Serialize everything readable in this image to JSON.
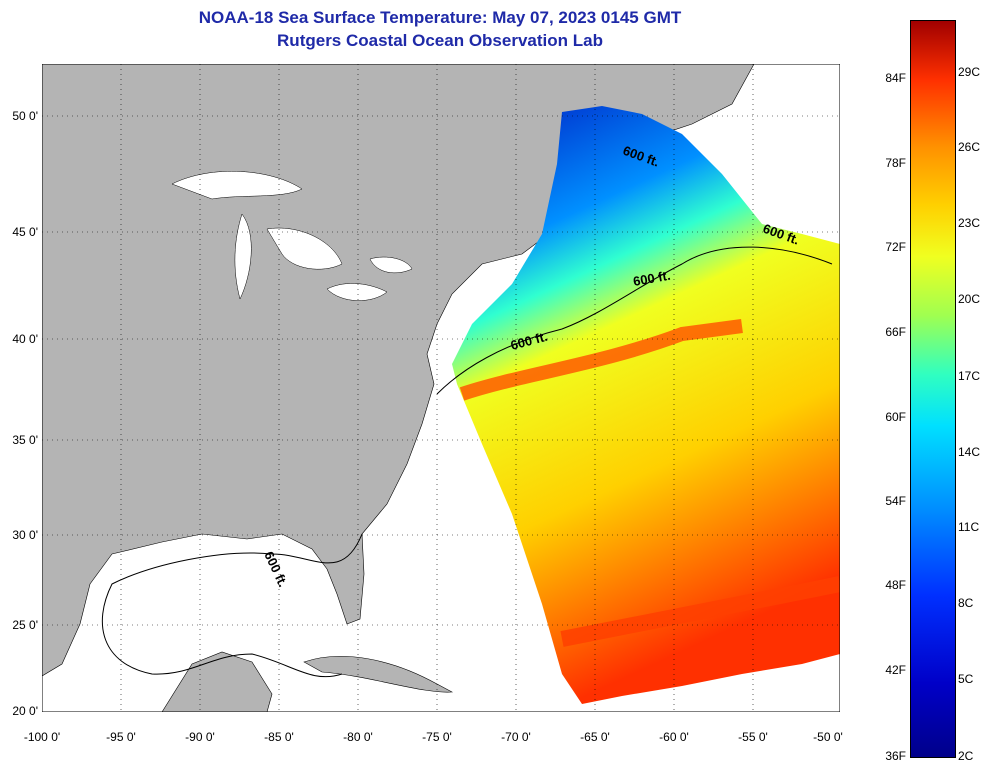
{
  "title": {
    "line1": "NOAA-18 Sea Surface Temperature:  May 07, 2023 0145 GMT",
    "line2": "Rutgers Coastal Ocean Observation Lab"
  },
  "axes": {
    "x_ticks": [
      "-100 0'",
      "-95 0'",
      "-90 0'",
      "-85 0'",
      "-80 0'",
      "-75 0'",
      "-70 0'",
      "-65 0'",
      "-60 0'",
      "-55 0'",
      "-50 0'"
    ],
    "y_ticks": [
      "50 0'",
      "45 0'",
      "40 0'",
      "35 0'",
      "30 0'",
      "25 0'",
      "20 0'"
    ]
  },
  "contour_labels": [
    "600 ft.",
    "600 ft.",
    "600 ft.",
    "600 ft.",
    "600 ft."
  ],
  "colorbar": {
    "fahrenheit": [
      "84F",
      "78F",
      "72F",
      "66F",
      "60F",
      "54F",
      "48F",
      "42F",
      "36F"
    ],
    "celsius": [
      "29C",
      "26C",
      "23C",
      "20C",
      "17C",
      "14C",
      "11C",
      "8C",
      "5C",
      "2C"
    ]
  },
  "colors": {
    "land": "#b4b4b4",
    "title": "#1f2aa8",
    "cold": "#0000c8",
    "warm": "#ff3000"
  }
}
